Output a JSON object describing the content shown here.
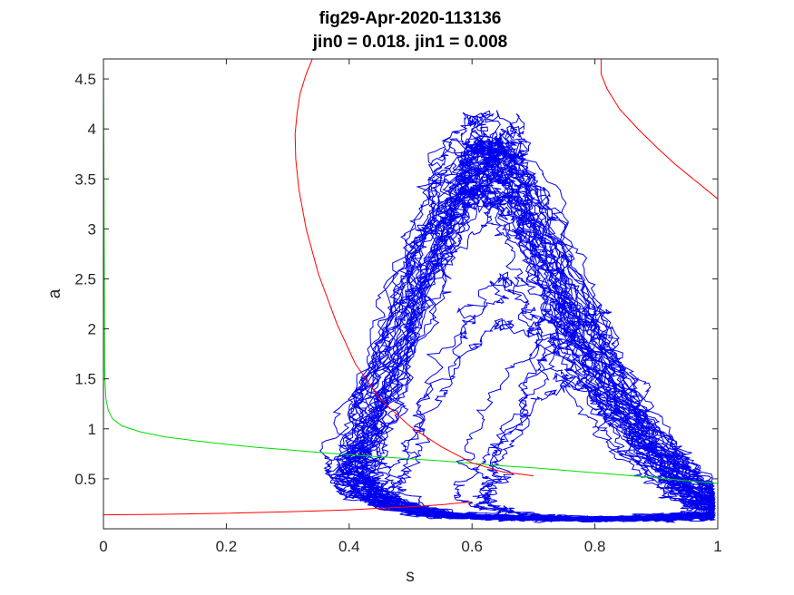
{
  "chart_data": {
    "type": "line",
    "title": "fig29-Apr-2020-113136",
    "subtitle": "jin0 = 0.018. jin1 = 0.008",
    "xlabel": "s",
    "ylabel": "a",
    "xlim": [
      0,
      1
    ],
    "ylim": [
      0,
      4.7
    ],
    "xticks": [
      0,
      0.2,
      0.4,
      0.6,
      0.8,
      1
    ],
    "xtick_labels": [
      "0",
      "0.2",
      "0.4",
      "0.6",
      "0.8",
      "1"
    ],
    "yticks": [
      0.5,
      1,
      1.5,
      2,
      2.5,
      3,
      3.5,
      4,
      4.5
    ],
    "ytick_labels": [
      "0.5",
      "1",
      "1.5",
      "2",
      "2.5",
      "3",
      "3.5",
      "4",
      "4.5"
    ],
    "grid": false,
    "box": true,
    "series": [
      {
        "color": "#00dd00",
        "x": [
          0,
          0.002,
          0.004,
          0.008,
          0.015,
          0.03,
          0.06,
          0.1,
          0.15,
          0.2,
          0.25,
          0.3,
          0.35,
          0.4,
          0.45,
          0.5,
          0.55,
          0.6,
          0.65,
          0.7,
          0.75,
          0.8,
          0.85,
          0.9,
          0.95,
          1.0
        ],
        "y": [
          4.7,
          1.55,
          1.3,
          1.18,
          1.1,
          1.03,
          0.97,
          0.92,
          0.88,
          0.845,
          0.815,
          0.79,
          0.765,
          0.74,
          0.72,
          0.7,
          0.68,
          0.655,
          0.63,
          0.61,
          0.585,
          0.56,
          0.535,
          0.51,
          0.48,
          0.455
        ]
      },
      {
        "color": "#ff0000",
        "x": [
          0.34,
          0.33,
          0.32,
          0.315,
          0.312,
          0.313,
          0.318,
          0.33,
          0.35,
          0.38,
          0.41,
          0.45,
          0.5,
          0.55,
          0.6,
          0.65,
          0.7
        ],
        "y": [
          4.7,
          4.55,
          4.35,
          4.15,
          3.95,
          3.7,
          3.4,
          3.0,
          2.55,
          2.05,
          1.65,
          1.3,
          1.02,
          0.82,
          0.66,
          0.57,
          0.53
        ]
      },
      {
        "color": "#ff0000",
        "x": [
          0,
          0.1,
          0.2,
          0.3,
          0.4,
          0.45,
          0.5,
          0.55,
          0.6
        ],
        "y": [
          0.14,
          0.145,
          0.155,
          0.17,
          0.19,
          0.205,
          0.22,
          0.24,
          0.27
        ]
      },
      {
        "color": "#ff0000",
        "x": [
          0.81,
          0.81,
          0.82,
          0.84,
          0.87,
          0.9,
          0.93,
          0.96,
          1.0
        ],
        "y": [
          4.7,
          4.55,
          4.4,
          4.2,
          4.0,
          3.82,
          3.65,
          3.5,
          3.3
        ]
      }
    ],
    "trajectory_color": "#0000ee",
    "trajectory_count": 42
  }
}
